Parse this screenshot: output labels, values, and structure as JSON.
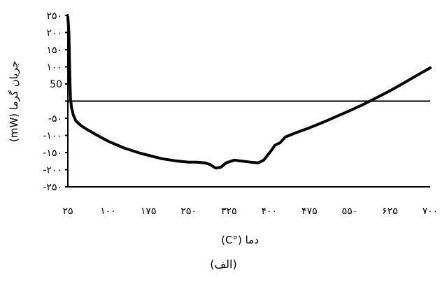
{
  "chart_data": {
    "type": "line",
    "xlabel": "دما (°C)",
    "ylabel": "جریان گرما (mW)",
    "caption": "(الف)",
    "xlim": [
      25,
      700
    ],
    "ylim": [
      -250,
      250
    ],
    "x_ticks": [
      25,
      100,
      175,
      250,
      325,
      400,
      475,
      550,
      625,
      700
    ],
    "x_tick_labels": [
      "۲۵",
      "۱۰۰",
      "۱۷۵",
      "۲۵۰",
      "۳۲۵",
      "۴۰۰",
      "۴۷۵",
      "۵۵۰",
      "۶۲۵",
      "۷۰۰"
    ],
    "y_ticks": [
      250,
      200,
      150,
      100,
      50,
      0,
      -50,
      -100,
      -150,
      -200,
      -250
    ],
    "y_tick_labels": [
      "۲۵۰",
      "۲۰۰",
      "۱۵۰",
      "۱۰۰",
      "50",
      "",
      "-۵۰",
      "-۱۰۰",
      "-۱۵۰",
      "-۲۰۰",
      "-۲۵۰"
    ],
    "grid": false,
    "series": [
      {
        "x": [
          25,
          27,
          28,
          29,
          30,
          32,
          35,
          40,
          50,
          60,
          80,
          100,
          130,
          160,
          200,
          230,
          250,
          265,
          280,
          290,
          300,
          310,
          320,
          335,
          350,
          365,
          380,
          390,
          395,
          405,
          410,
          415,
          420,
          430,
          450,
          475,
          500,
          525,
          550,
          575,
          600,
          625,
          650,
          675,
          700
        ],
        "y": [
          245,
          200,
          120,
          50,
          5,
          -20,
          -40,
          -58,
          -72,
          -82,
          -100,
          -117,
          -137,
          -152,
          -168,
          -175,
          -178,
          -178,
          -180,
          -185,
          -195,
          -193,
          -180,
          -172,
          -175,
          -178,
          -180,
          -172,
          -162,
          -142,
          -130,
          -125,
          -122,
          -105,
          -92,
          -78,
          -62,
          -45,
          -28,
          -10,
          10,
          30,
          52,
          75,
          97
        ]
      }
    ],
    "reference_lines": [
      {
        "y": 0
      }
    ]
  }
}
